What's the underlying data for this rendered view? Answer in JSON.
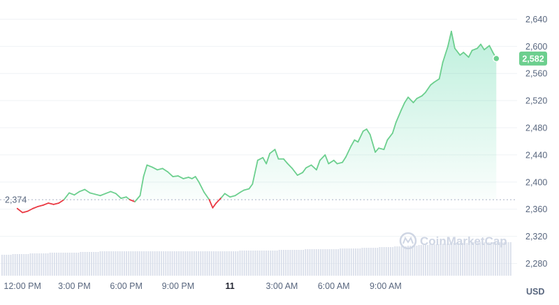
{
  "chart_data": {
    "type": "area",
    "x_tick_labels": [
      "12:00 PM",
      "3:00 PM",
      "6:00 PM",
      "9:00 PM",
      "11",
      "3:00 AM",
      "6:00 AM",
      "9:00 AM"
    ],
    "y_ticks": [
      "2,640",
      "2,600",
      "2,560",
      "2,520",
      "2,480",
      "2,440",
      "2,400",
      "2,360",
      "2,320",
      "2,280"
    ],
    "ylim": [
      2262,
      2660
    ],
    "unit": "USD",
    "reference_price": 2374,
    "reference_label": "2,374",
    "current_price": 2582,
    "current_label": "2,582",
    "watermark": "CoinMarketCap",
    "colors": {
      "up": "#16c784",
      "up_line": "#6ccf8e",
      "down": "#ea3943",
      "grid": "#eff2f5",
      "volume": "#cfd6e4",
      "text": "#58667e"
    },
    "series": [
      {
        "points": [
          [
            11.7,
            2361
          ],
          [
            12.0,
            2355
          ],
          [
            12.3,
            2357
          ],
          [
            12.6,
            2361
          ],
          [
            12.9,
            2364
          ],
          [
            13.2,
            2366
          ],
          [
            13.5,
            2369
          ],
          [
            13.8,
            2367
          ],
          [
            14.1,
            2369
          ],
          [
            14.4,
            2374
          ],
          [
            14.7,
            2384
          ],
          [
            15.0,
            2381
          ],
          [
            15.3,
            2386
          ],
          [
            15.6,
            2389
          ],
          [
            15.9,
            2384
          ],
          [
            16.2,
            2382
          ],
          [
            16.5,
            2380
          ],
          [
            16.8,
            2383
          ],
          [
            17.1,
            2386
          ],
          [
            17.4,
            2383
          ],
          [
            17.7,
            2376
          ],
          [
            18.0,
            2378
          ],
          [
            18.2,
            2374
          ],
          [
            18.5,
            2371
          ],
          [
            18.8,
            2380
          ],
          [
            19.0,
            2408
          ],
          [
            19.2,
            2425
          ],
          [
            19.5,
            2422
          ],
          [
            19.8,
            2418
          ],
          [
            20.1,
            2420
          ],
          [
            20.4,
            2415
          ],
          [
            20.7,
            2408
          ],
          [
            21.0,
            2409
          ],
          [
            21.3,
            2405
          ],
          [
            21.6,
            2407
          ],
          [
            21.8,
            2405
          ],
          [
            22.0,
            2408
          ],
          [
            22.2,
            2400
          ],
          [
            22.5,
            2385
          ],
          [
            22.8,
            2374
          ],
          [
            23.0,
            2362
          ],
          [
            23.2,
            2369
          ],
          [
            23.5,
            2377
          ],
          [
            23.7,
            2383
          ],
          [
            24.0,
            2378
          ],
          [
            24.3,
            2380
          ],
          [
            24.6,
            2385
          ],
          [
            24.8,
            2388
          ],
          [
            25.1,
            2390
          ],
          [
            25.3,
            2397
          ],
          [
            25.6,
            2432
          ],
          [
            25.9,
            2436
          ],
          [
            26.1,
            2427
          ],
          [
            26.3,
            2442
          ],
          [
            26.6,
            2448
          ],
          [
            26.8,
            2434
          ],
          [
            27.1,
            2434
          ],
          [
            27.3,
            2428
          ],
          [
            27.6,
            2420
          ],
          [
            27.9,
            2410
          ],
          [
            28.2,
            2414
          ],
          [
            28.4,
            2421
          ],
          [
            28.7,
            2425
          ],
          [
            29.0,
            2418
          ],
          [
            29.2,
            2432
          ],
          [
            29.5,
            2440
          ],
          [
            29.7,
            2427
          ],
          [
            30.0,
            2432
          ],
          [
            30.2,
            2427
          ],
          [
            30.5,
            2429
          ],
          [
            30.7,
            2437
          ],
          [
            31.0,
            2453
          ],
          [
            31.2,
            2462
          ],
          [
            31.4,
            2459
          ],
          [
            31.7,
            2475
          ],
          [
            31.9,
            2478
          ],
          [
            32.1,
            2470
          ],
          [
            32.4,
            2444
          ],
          [
            32.6,
            2450
          ],
          [
            32.9,
            2448
          ],
          [
            33.1,
            2462
          ],
          [
            33.4,
            2472
          ],
          [
            33.6,
            2488
          ],
          [
            33.9,
            2506
          ],
          [
            34.1,
            2517
          ],
          [
            34.3,
            2525
          ],
          [
            34.6,
            2517
          ],
          [
            34.8,
            2523
          ],
          [
            35.1,
            2527
          ],
          [
            35.3,
            2532
          ],
          [
            35.6,
            2543
          ],
          [
            35.8,
            2547
          ],
          [
            36.1,
            2552
          ],
          [
            36.3,
            2576
          ],
          [
            36.6,
            2600
          ],
          [
            36.8,
            2622
          ],
          [
            37.0,
            2597
          ],
          [
            37.3,
            2587
          ],
          [
            37.5,
            2591
          ],
          [
            37.8,
            2584
          ],
          [
            38.0,
            2594
          ],
          [
            38.3,
            2597
          ],
          [
            38.5,
            2603
          ],
          [
            38.7,
            2595
          ],
          [
            39.0,
            2601
          ],
          [
            39.2,
            2591
          ],
          [
            39.4,
            2582
          ]
        ]
      }
    ],
    "volume": [
      30,
      30,
      30,
      30,
      30,
      31,
      31,
      31,
      31,
      31,
      31,
      31,
      31,
      32,
      32,
      32,
      32,
      32,
      32,
      32,
      32,
      32,
      33,
      33,
      33,
      33,
      33,
      33,
      33,
      33,
      33,
      33,
      33,
      33,
      33,
      33,
      34,
      34,
      34,
      34,
      34,
      34,
      34,
      34,
      34,
      35,
      35,
      35,
      35,
      35,
      35,
      35,
      35,
      35,
      35,
      35,
      35,
      35,
      35,
      35,
      35,
      35,
      35,
      35,
      35,
      35,
      35,
      35,
      35,
      35,
      35,
      35,
      35,
      35,
      35,
      35,
      35,
      35,
      35,
      35,
      35,
      35,
      35,
      35,
      35,
      35,
      35,
      35,
      35,
      35,
      35,
      35,
      35,
      35,
      35,
      35,
      35,
      35,
      35,
      35,
      35,
      35,
      35,
      35,
      35,
      35,
      35,
      35,
      35,
      36,
      36,
      36,
      36,
      36,
      36,
      36,
      36,
      36,
      36,
      36,
      36,
      36,
      36,
      36,
      36,
      36,
      36,
      37,
      37,
      37,
      37,
      37,
      37,
      37,
      37,
      37,
      37,
      37,
      37,
      38,
      38,
      38,
      38,
      38,
      38,
      38,
      38,
      38,
      38,
      38,
      38,
      38,
      38,
      38,
      38,
      39,
      39,
      39,
      39,
      39,
      39,
      39,
      39,
      39,
      39,
      40,
      40,
      40,
      40,
      40,
      40,
      40,
      40,
      41,
      41,
      41,
      41,
      41,
      41,
      41,
      42,
      42,
      42,
      42,
      42,
      42,
      43,
      43,
      43,
      43,
      43,
      44,
      44,
      44,
      44,
      44,
      45,
      45,
      45,
      45,
      45,
      46,
      46,
      46,
      46,
      46,
      46,
      47,
      47,
      47,
      47,
      47,
      47,
      47,
      48,
      48,
      48,
      48,
      48,
      48,
      48,
      48,
      48,
      48,
      48,
      48,
      48,
      48,
      48,
      48,
      48,
      48,
      48,
      48
    ]
  }
}
